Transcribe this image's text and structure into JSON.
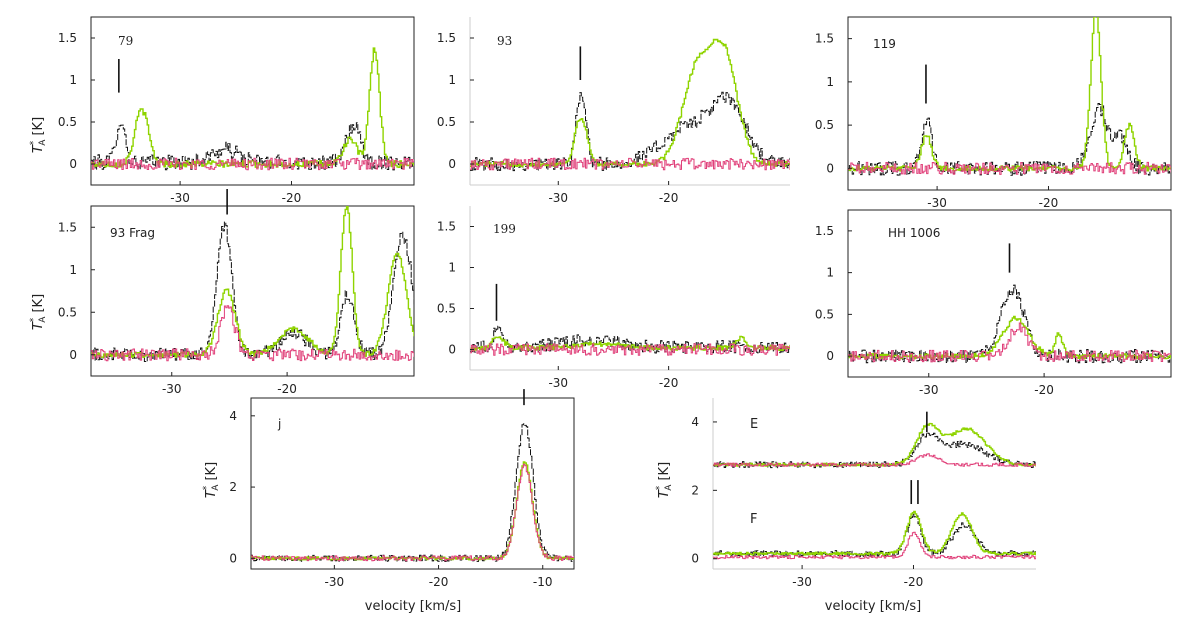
{
  "figure": {
    "common_xlabel": "velocity [km/s]",
    "ylabel_main": "T",
    "ylabel_sub": "A",
    "ylabel_sup": "*",
    "ylabel_unit": "[K]"
  },
  "chart_data": [
    {
      "id": "p79",
      "type": "line",
      "label": "79",
      "xlim": [
        -38,
        -9
      ],
      "ylim": [
        -0.25,
        1.75
      ],
      "xticks": [
        -30,
        -20
      ],
      "xtick_labels": [
        "-30",
        "-20"
      ],
      "yticks": [
        0,
        0.5,
        1,
        1.5
      ],
      "ytick_labels": [
        "0",
        "0.5",
        "1",
        "1.5"
      ],
      "marker_x": -35.5,
      "marker_y": [
        0.85,
        1.25
      ],
      "series": [
        {
          "name": "black",
          "color": "#111111",
          "baseline": 0.02,
          "noise": 0.09,
          "peaks": [
            {
              "c": -35.4,
              "a": 0.5,
              "w": 0.4
            },
            {
              "c": -26,
              "a": 0.15,
              "w": 1.2
            },
            {
              "c": -14.5,
              "a": 0.45,
              "w": 0.6
            }
          ]
        },
        {
          "name": "green",
          "color": "#8fd400",
          "baseline": 0.0,
          "noise": 0.04,
          "peaks": [
            {
              "c": -33.5,
              "a": 0.65,
              "w": 0.6
            },
            {
              "c": -14.8,
              "a": 0.3,
              "w": 0.6
            },
            {
              "c": -12.6,
              "a": 1.35,
              "w": 0.45
            }
          ]
        },
        {
          "name": "magenta",
          "color": "#e0407a",
          "baseline": 0.0,
          "noise": 0.07,
          "peaks": []
        }
      ]
    },
    {
      "id": "p93",
      "type": "line",
      "label": "93",
      "xlim": [
        -38,
        -9
      ],
      "ylim": [
        -0.25,
        1.75
      ],
      "xticks": [
        -30,
        -20
      ],
      "xtick_labels": [
        "-30",
        "-20"
      ],
      "yticks": [
        0,
        0.5,
        1,
        1.5
      ],
      "ytick_labels": [
        "0",
        "0.5",
        "1",
        "1.5"
      ],
      "marker_x": -28,
      "marker_y": [
        1.0,
        1.4
      ],
      "series": [
        {
          "name": "black",
          "color": "#111111",
          "baseline": 0.0,
          "noise": 0.08,
          "peaks": [
            {
              "c": -28,
              "a": 0.85,
              "w": 0.45
            },
            {
              "c": -18,
              "a": 0.45,
              "w": 2.5
            },
            {
              "c": -14.5,
              "a": 0.6,
              "w": 1.5
            }
          ]
        },
        {
          "name": "green",
          "color": "#8fd400",
          "baseline": 0.0,
          "noise": 0.03,
          "peaks": [
            {
              "c": -28,
              "a": 0.55,
              "w": 0.55
            },
            {
              "c": -17.5,
              "a": 1.1,
              "w": 1.3
            },
            {
              "c": -15,
              "a": 1.25,
              "w": 1.2
            }
          ]
        },
        {
          "name": "magenta",
          "color": "#e0407a",
          "baseline": 0.0,
          "noise": 0.07,
          "peaks": []
        }
      ]
    },
    {
      "id": "p119",
      "type": "line",
      "label": "119",
      "xlim": [
        -38,
        -9
      ],
      "ylim": [
        -0.25,
        1.75
      ],
      "xticks": [
        -30,
        -20
      ],
      "xtick_labels": [
        "-30",
        "-20"
      ],
      "yticks": [
        0,
        0.5,
        1,
        1.5
      ],
      "ytick_labels": [
        "0",
        "0.5",
        "1",
        "1.5"
      ],
      "marker_x": -31,
      "marker_y": [
        0.75,
        1.2
      ],
      "series": [
        {
          "name": "black",
          "color": "#111111",
          "baseline": 0.0,
          "noise": 0.08,
          "peaks": [
            {
              "c": -31,
              "a": 0.55,
              "w": 0.45
            },
            {
              "c": -15.5,
              "a": 0.7,
              "w": 0.8
            },
            {
              "c": -13.5,
              "a": 0.35,
              "w": 0.6
            }
          ]
        },
        {
          "name": "green",
          "color": "#8fd400",
          "baseline": 0.0,
          "noise": 0.03,
          "peaks": [
            {
              "c": -31,
              "a": 0.38,
              "w": 0.45
            },
            {
              "c": -15.8,
              "a": 1.85,
              "w": 0.45
            },
            {
              "c": -12.8,
              "a": 0.5,
              "w": 0.45
            }
          ]
        },
        {
          "name": "magenta",
          "color": "#e0407a",
          "baseline": 0.0,
          "noise": 0.07,
          "peaks": []
        }
      ]
    },
    {
      "id": "p93frag",
      "type": "line",
      "label": "93 Frag",
      "xlim": [
        -37,
        -9
      ],
      "ylim": [
        -0.25,
        1.75
      ],
      "xticks": [
        -30,
        -20
      ],
      "xtick_labels": [
        "-30",
        "-20"
      ],
      "yticks": [
        0,
        0.5,
        1,
        1.5
      ],
      "ytick_labels": [
        "0",
        "0.5",
        "1",
        "1.5"
      ],
      "marker_x": -25.2,
      "marker_y": [
        1.65,
        1.95
      ],
      "series": [
        {
          "name": "black",
          "color": "#111111",
          "baseline": 0.0,
          "noise": 0.08,
          "peaks": [
            {
              "c": -25.5,
              "a": 1.5,
              "w": 0.65
            },
            {
              "c": -19.5,
              "a": 0.25,
              "w": 1.2
            },
            {
              "c": -14.8,
              "a": 0.7,
              "w": 0.6
            },
            {
              "c": -10,
              "a": 1.4,
              "w": 0.8
            }
          ]
        },
        {
          "name": "green",
          "color": "#8fd400",
          "baseline": 0.0,
          "noise": 0.03,
          "peaks": [
            {
              "c": -25.3,
              "a": 0.75,
              "w": 0.75
            },
            {
              "c": -19.5,
              "a": 0.3,
              "w": 1.3
            },
            {
              "c": -14.9,
              "a": 1.75,
              "w": 0.5
            },
            {
              "c": -10.5,
              "a": 1.2,
              "w": 0.8
            }
          ]
        },
        {
          "name": "magenta",
          "color": "#e0407a",
          "baseline": 0.0,
          "noise": 0.07,
          "peaks": [
            {
              "c": -25.2,
              "a": 0.55,
              "w": 0.6
            }
          ]
        }
      ]
    },
    {
      "id": "p199",
      "type": "line",
      "label": "199",
      "xlim": [
        -38,
        -9
      ],
      "ylim": [
        -0.25,
        1.75
      ],
      "xticks": [
        -30,
        -20
      ],
      "xtick_labels": [
        "-30",
        "-20"
      ],
      "yticks": [
        0,
        0.5,
        1,
        1.5
      ],
      "ytick_labels": [
        "0",
        "0.5",
        "1",
        "1.5"
      ],
      "marker_x": -35.6,
      "marker_y": [
        0.35,
        0.8
      ],
      "series": [
        {
          "name": "black",
          "color": "#111111",
          "baseline": 0.03,
          "noise": 0.08,
          "peaks": [
            {
              "c": -35.5,
              "a": 0.25,
              "w": 0.4
            },
            {
              "c": -27,
              "a": 0.08,
              "w": 2.5
            }
          ]
        },
        {
          "name": "green",
          "color": "#8fd400",
          "baseline": 0.02,
          "noise": 0.03,
          "peaks": [
            {
              "c": -35.5,
              "a": 0.15,
              "w": 0.5
            },
            {
              "c": -26.5,
              "a": 0.05,
              "w": 2
            },
            {
              "c": -13.5,
              "a": 0.12,
              "w": 0.4
            }
          ]
        },
        {
          "name": "magenta",
          "color": "#e0407a",
          "baseline": 0.0,
          "noise": 0.07,
          "peaks": []
        }
      ]
    },
    {
      "id": "phh1006",
      "type": "line",
      "label": "HH 1006",
      "xlim": [
        -37,
        -9
      ],
      "ylim": [
        -0.25,
        1.75
      ],
      "xticks": [
        -30,
        -20
      ],
      "xtick_labels": [
        "-30",
        "-20"
      ],
      "yticks": [
        0,
        0.5,
        1,
        1.5
      ],
      "ytick_labels": [
        "0",
        "0.5",
        "1",
        "1.5"
      ],
      "marker_x": -23,
      "marker_y": [
        1.0,
        1.35
      ],
      "series": [
        {
          "name": "black",
          "color": "#111111",
          "baseline": 0.0,
          "noise": 0.08,
          "peaks": [
            {
              "c": -22.8,
              "a": 0.8,
              "w": 1.0
            }
          ]
        },
        {
          "name": "green",
          "color": "#8fd400",
          "baseline": 0.0,
          "noise": 0.03,
          "peaks": [
            {
              "c": -22.5,
              "a": 0.45,
              "w": 1.1
            },
            {
              "c": -18.8,
              "a": 0.25,
              "w": 0.35
            }
          ]
        },
        {
          "name": "magenta",
          "color": "#e0407a",
          "baseline": 0.0,
          "noise": 0.07,
          "peaks": [
            {
              "c": -22.3,
              "a": 0.35,
              "w": 0.8
            }
          ]
        }
      ]
    },
    {
      "id": "pj",
      "type": "line",
      "label": "j",
      "xlim": [
        -38,
        -7
      ],
      "ylim": [
        -0.3,
        4.5
      ],
      "xticks": [
        -30,
        -20,
        -10
      ],
      "xtick_labels": [
        "-30",
        "-20",
        "-10"
      ],
      "yticks": [
        0,
        2,
        4
      ],
      "ytick_labels": [
        "0",
        "2",
        "4"
      ],
      "marker_x": -11.8,
      "marker_y": [
        4.3,
        4.75
      ],
      "series": [
        {
          "name": "black",
          "color": "#111111",
          "baseline": 0.0,
          "noise": 0.09,
          "peaks": [
            {
              "c": -11.8,
              "a": 3.8,
              "w": 0.8
            }
          ]
        },
        {
          "name": "green",
          "color": "#8fd400",
          "baseline": 0.0,
          "noise": 0.04,
          "peaks": [
            {
              "c": -11.8,
              "a": 2.7,
              "w": 0.75
            }
          ]
        },
        {
          "name": "magenta",
          "color": "#e0407a",
          "baseline": 0.0,
          "noise": 0.07,
          "peaks": [
            {
              "c": -11.8,
              "a": 2.6,
              "w": 0.75
            }
          ]
        }
      ]
    },
    {
      "id": "pEF",
      "type": "line",
      "label_E": "E",
      "label_F": "F",
      "xlim": [
        -38,
        -9
      ],
      "ylim": [
        -0.3,
        4.7
      ],
      "xticks": [
        -30,
        -20
      ],
      "xtick_labels": [
        "-30",
        "-20"
      ],
      "yticks": [
        0,
        2,
        4
      ],
      "ytick_labels": [
        "0",
        "2",
        "4"
      ],
      "markers": [
        {
          "x": -18.8,
          "y": [
            3.7,
            4.3
          ]
        },
        {
          "x": -20.2,
          "y": [
            1.6,
            2.3
          ]
        },
        {
          "x": -19.6,
          "y": [
            1.6,
            2.3
          ]
        }
      ],
      "series": [
        {
          "name": "E black",
          "color": "#111111",
          "baseline": 2.75,
          "noise": 0.09,
          "peaks": [
            {
              "c": -18.8,
              "a": 0.8,
              "w": 1.0
            },
            {
              "c": -15.5,
              "a": 0.6,
              "w": 1.8
            }
          ]
        },
        {
          "name": "E green",
          "color": "#8fd400",
          "baseline": 2.75,
          "noise": 0.04,
          "peaks": [
            {
              "c": -18.8,
              "a": 1.05,
              "w": 1.0
            },
            {
              "c": -15.3,
              "a": 1.05,
              "w": 1.7
            }
          ]
        },
        {
          "name": "E magenta",
          "color": "#e0407a",
          "baseline": 2.75,
          "noise": 0.05,
          "peaks": [
            {
              "c": -18.8,
              "a": 0.3,
              "w": 0.9
            }
          ]
        },
        {
          "name": "F black",
          "color": "#111111",
          "baseline": 0.15,
          "noise": 0.09,
          "peaks": [
            {
              "c": -20,
              "a": 1.15,
              "w": 0.6
            },
            {
              "c": -15.5,
              "a": 0.85,
              "w": 1.0
            }
          ]
        },
        {
          "name": "F green",
          "color": "#8fd400",
          "baseline": 0.15,
          "noise": 0.04,
          "peaks": [
            {
              "c": -20,
              "a": 1.2,
              "w": 0.65
            },
            {
              "c": -15.7,
              "a": 1.15,
              "w": 0.9
            }
          ]
        },
        {
          "name": "F magenta",
          "color": "#e0407a",
          "baseline": 0.05,
          "noise": 0.05,
          "peaks": [
            {
              "c": -20,
              "a": 0.7,
              "w": 0.55
            }
          ]
        }
      ]
    }
  ]
}
